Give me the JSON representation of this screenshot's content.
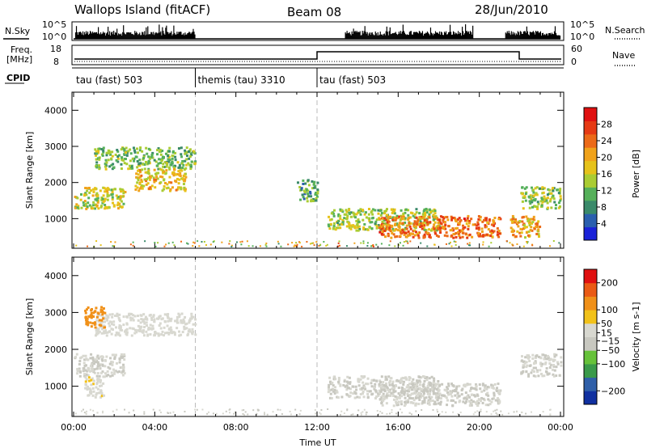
{
  "header": {
    "station": "Wallops Island (fitACF)",
    "beam": "Beam 08",
    "date": "28/Jun/2010"
  },
  "sky_panel": {
    "left_label": "N.Sky",
    "right_label": "N.Search",
    "left_ticks": [
      "10^5",
      "10^0"
    ],
    "right_ticks": [
      "10^5",
      "10^0"
    ]
  },
  "freq_panel": {
    "left_label_1": "Freq.",
    "left_label_2": "[MHz]",
    "right_label": "Nave",
    "left_ticks": [
      "18",
      "8"
    ],
    "right_ticks": [
      "60",
      "0"
    ]
  },
  "cpid": {
    "label": "CPID",
    "modes": [
      {
        "text": "tau (fast) 503",
        "start_h": 0,
        "end_h": 6
      },
      {
        "text": "themis (tau) 3310",
        "start_h": 6,
        "end_h": 12
      },
      {
        "text": "tau (fast) 503",
        "start_h": 12,
        "end_h": 24
      }
    ]
  },
  "colors": {
    "power_scale": [
      "#1a22d8",
      "#2a5fae",
      "#3a8a6a",
      "#55b05a",
      "#aacc33",
      "#e6c21a",
      "#f0a21a",
      "#ec6a18",
      "#e63a14",
      "#e01010"
    ],
    "velocity_scale": [
      "#1030a0",
      "#2f5fa8",
      "#3a9a4a",
      "#66c23a",
      "#c8c8c0",
      "#d8d8d0",
      "#f2c21a",
      "#f09018",
      "#ea5a14",
      "#e01010"
    ]
  },
  "chart_data": [
    {
      "type": "heatmap",
      "title": "",
      "xlabel": "",
      "ylabel": "Slant Range [km]",
      "xlim": [
        0,
        24
      ],
      "ylim": [
        180,
        4500
      ],
      "x_tick_labels": [
        "00:00",
        "04:00",
        "08:00",
        "12:00",
        "16:00",
        "20:00",
        "00:00"
      ],
      "y_ticks": [
        1000,
        2000,
        3000,
        4000
      ],
      "colorbar": {
        "label": "Power [dB]",
        "range": [
          0,
          32
        ],
        "ticks": [
          4,
          8,
          12,
          16,
          20,
          24,
          28
        ]
      },
      "echo_regions": [
        {
          "t_start": 0.0,
          "t_end": 2.5,
          "r_center": 1600,
          "value": 16
        },
        {
          "t_start": 1.0,
          "t_end": 6.0,
          "r_center": 2700,
          "value": 12
        },
        {
          "t_start": 3.0,
          "t_end": 5.5,
          "r_center": 2100,
          "value": 18
        },
        {
          "t_start": 11.0,
          "t_end": 12.0,
          "r_center": 1800,
          "value": 10
        },
        {
          "t_start": 12.5,
          "t_end": 18.0,
          "r_center": 1000,
          "value": 14
        },
        {
          "t_start": 15.0,
          "t_end": 21.0,
          "r_center": 800,
          "value": 24
        },
        {
          "t_start": 21.5,
          "t_end": 23.0,
          "r_center": 800,
          "value": 20
        },
        {
          "t_start": 22.0,
          "t_end": 24.0,
          "r_center": 1600,
          "value": 14
        }
      ]
    },
    {
      "type": "heatmap",
      "title": "",
      "xlabel": "Time UT",
      "ylabel": "Slant Range [km]",
      "xlim": [
        0,
        24
      ],
      "ylim": [
        180,
        4500
      ],
      "x_tick_labels": [
        "00:00",
        "04:00",
        "08:00",
        "12:00",
        "16:00",
        "20:00",
        "00:00"
      ],
      "y_ticks": [
        1000,
        2000,
        3000,
        4000
      ],
      "colorbar": {
        "label": "Velocity [m s-1]",
        "range": [
          -250,
          250
        ],
        "ticks": [
          200,
          100,
          50,
          15,
          -15,
          -50,
          -100,
          -200
        ],
        "tick_labels": [
          "200",
          "100",
          "50",
          "15",
          "−15",
          "−50",
          "−100",
          "−200"
        ]
      },
      "echo_regions": [
        {
          "t_start": 0.0,
          "t_end": 2.5,
          "r_center": 1600,
          "value": 0
        },
        {
          "t_start": 1.0,
          "t_end": 6.0,
          "r_center": 2700,
          "value": 30
        },
        {
          "t_start": 0.5,
          "t_end": 1.5,
          "r_center": 2900,
          "value": 120
        },
        {
          "t_start": 0.5,
          "t_end": 1.5,
          "r_center": 1000,
          "value": 40
        },
        {
          "t_start": 12.5,
          "t_end": 18.0,
          "r_center": 1000,
          "value": 0
        },
        {
          "t_start": 15.0,
          "t_end": 21.0,
          "r_center": 800,
          "value": 0
        },
        {
          "t_start": 22.0,
          "t_end": 24.0,
          "r_center": 1600,
          "value": 0
        }
      ]
    }
  ]
}
